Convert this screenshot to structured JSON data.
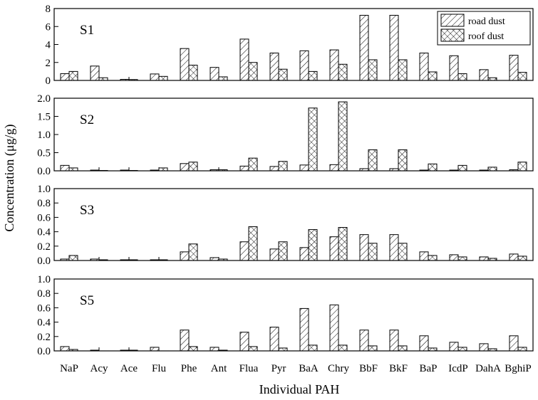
{
  "chart_data": {
    "type": "bar",
    "xlabel": "Individual PAH",
    "ylabel": "Concentration (μg/g)",
    "categories": [
      "NaP",
      "Acy",
      "Ace",
      "Flu",
      "Phe",
      "Ant",
      "Flua",
      "Pyr",
      "BaA",
      "Chry",
      "BbF",
      "BkF",
      "BaP",
      "IcdP",
      "DahA",
      "BghiP"
    ],
    "legend": {
      "position": "top-right",
      "entries": [
        "road dust",
        "roof dust"
      ]
    },
    "series_patterns": {
      "road dust": "diagonal-hatch",
      "roof dust": "cross-hatch"
    },
    "panels": [
      {
        "label": "S1",
        "ylim": [
          0,
          8
        ],
        "yticks": [
          0,
          2,
          4,
          6,
          8
        ],
        "tick_labels": [
          "0",
          "2",
          "4",
          "6",
          "8"
        ],
        "series": [
          {
            "name": "road dust",
            "values": [
              0.75,
              1.6,
              0.12,
              0.72,
              3.55,
              1.45,
              4.6,
              3.05,
              3.3,
              3.4,
              7.25,
              7.25,
              3.05,
              2.75,
              1.2,
              2.8
            ]
          },
          {
            "name": "roof dust",
            "values": [
              1.0,
              0.3,
              0.1,
              0.45,
              1.7,
              0.4,
              2.0,
              1.25,
              1.0,
              1.8,
              2.3,
              2.3,
              0.95,
              0.75,
              0.3,
              0.9
            ]
          }
        ]
      },
      {
        "label": "S2",
        "ylim": [
          0,
          2
        ],
        "yticks": [
          0,
          0.5,
          1,
          1.5,
          2
        ],
        "tick_labels": [
          "0.0",
          "0.5",
          "1.0",
          "1.5",
          "2.0"
        ],
        "series": [
          {
            "name": "road dust",
            "values": [
              0.15,
              0.02,
              0.02,
              0.02,
              0.2,
              0.03,
              0.13,
              0.12,
              0.16,
              0.17,
              0.06,
              0.06,
              0.02,
              0.02,
              0.02,
              0.03
            ]
          },
          {
            "name": "roof dust",
            "values": [
              0.08,
              0.01,
              0.01,
              0.08,
              0.24,
              0.03,
              0.35,
              0.26,
              1.73,
              1.9,
              0.58,
              0.58,
              0.19,
              0.15,
              0.1,
              0.24
            ]
          }
        ]
      },
      {
        "label": "S3",
        "ylim": [
          0,
          1
        ],
        "yticks": [
          0,
          0.2,
          0.4,
          0.6,
          0.8,
          1
        ],
        "tick_labels": [
          "0.0",
          "0.2",
          "0.4",
          "0.6",
          "0.8",
          "1.0"
        ],
        "series": [
          {
            "name": "road dust",
            "values": [
              0.02,
              0.02,
              0.01,
              0.01,
              0.12,
              0.04,
              0.26,
              0.16,
              0.18,
              0.33,
              0.36,
              0.36,
              0.12,
              0.08,
              0.05,
              0.09
            ]
          },
          {
            "name": "roof dust",
            "values": [
              0.07,
              0.01,
              0.01,
              0.01,
              0.23,
              0.02,
              0.47,
              0.26,
              0.43,
              0.46,
              0.24,
              0.24,
              0.07,
              0.05,
              0.03,
              0.06
            ]
          }
        ]
      },
      {
        "label": "S5",
        "ylim": [
          0,
          1
        ],
        "yticks": [
          0,
          0.2,
          0.4,
          0.6,
          0.8,
          1
        ],
        "tick_labels": [
          "0.0",
          "0.2",
          "0.4",
          "0.6",
          "0.8",
          "1.0"
        ],
        "series": [
          {
            "name": "road dust",
            "values": [
              0.06,
              0.01,
              0.01,
              0.05,
              0.29,
              0.05,
              0.26,
              0.33,
              0.59,
              0.64,
              0.29,
              0.29,
              0.21,
              0.12,
              0.1,
              0.21
            ]
          },
          {
            "name": "roof dust",
            "values": [
              0.02,
              0.0,
              0.01,
              0.0,
              0.06,
              0.01,
              0.06,
              0.04,
              0.08,
              0.08,
              0.07,
              0.07,
              0.04,
              0.05,
              0.03,
              0.05
            ]
          }
        ]
      }
    ]
  }
}
